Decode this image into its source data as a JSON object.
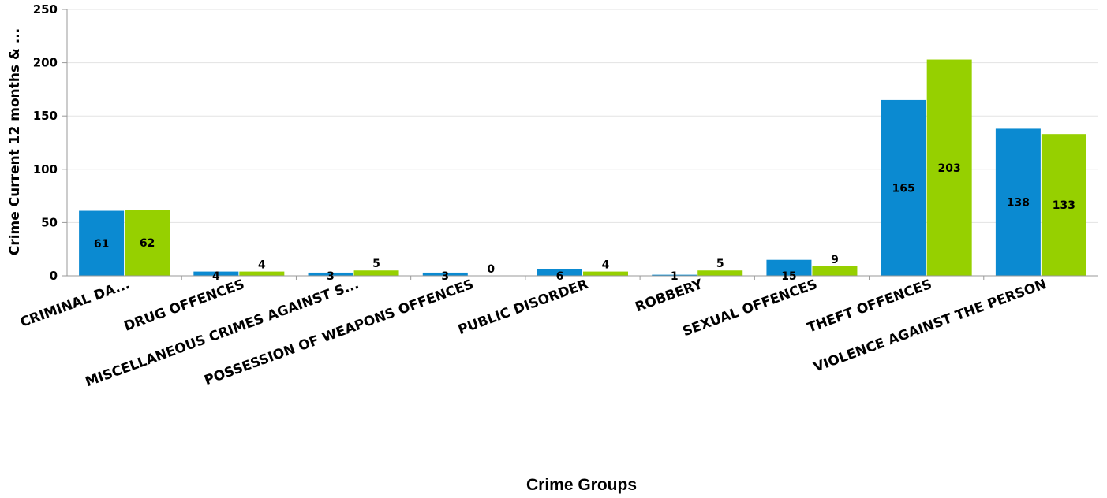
{
  "chart_data": {
    "type": "bar",
    "title": "",
    "xlabel": "Crime Groups",
    "ylabel": "Crime Current 12 months & ...",
    "ylim": [
      0,
      250
    ],
    "yticks": [
      0,
      50,
      100,
      150,
      200,
      250
    ],
    "grid": true,
    "legend": "none",
    "categories": [
      "CRIMINAL DA...",
      "DRUG OFFENCES",
      "MISCELLANEOUS CRIMES AGAINST S...",
      "POSSESSION OF WEAPONS OFFENCES",
      "PUBLIC DISORDER",
      "ROBBERY",
      "SEXUAL OFFENCES",
      "THEFT OFFENCES",
      "VIOLENCE AGAINST THE PERSON"
    ],
    "series": [
      {
        "color": "#0B8AD1",
        "values": [
          61,
          4,
          3,
          3,
          6,
          1,
          15,
          165,
          138
        ]
      },
      {
        "color": "#96D000",
        "values": [
          62,
          4,
          5,
          0,
          4,
          5,
          9,
          203,
          133
        ]
      }
    ]
  }
}
